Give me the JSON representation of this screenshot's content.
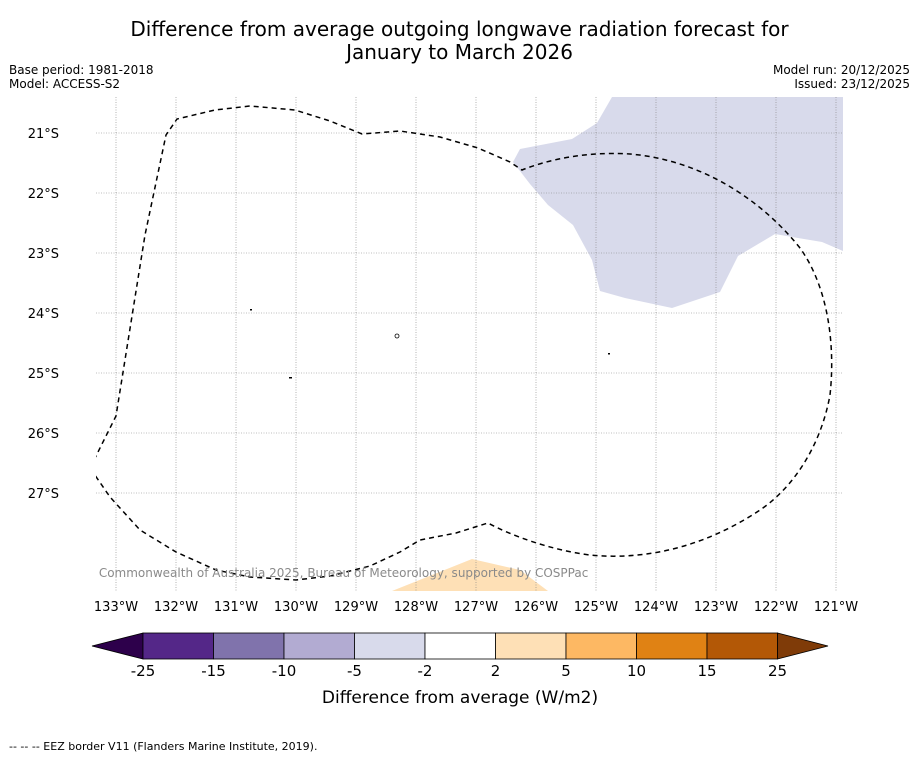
{
  "title_line1": "Difference from average outgoing longwave radiation forecast for",
  "title_line2": "January to March 2026",
  "base_period": "Base period: 1981-2018",
  "model": "Model: ACCESS-S2",
  "model_run": "Model run: 20/12/2025",
  "issued": "Issued: 23/12/2025",
  "latitudes": [
    "21°S",
    "22°S",
    "23°S",
    "24°S",
    "25°S",
    "26°S",
    "27°S"
  ],
  "longitudes": [
    "133°W",
    "132°W",
    "131°W",
    "130°W",
    "129°W",
    "128°W",
    "127°W",
    "126°W",
    "125°W",
    "124°W",
    "123°W",
    "122°W",
    "121°W"
  ],
  "copyright": "© Commonwealth of Australia 2025, Bureau of Meteorology, supported by COSPPac",
  "colorbar": {
    "ticks": [
      "-25",
      "-15",
      "-10",
      "-5",
      "-2",
      "2",
      "5",
      "10",
      "15",
      "25"
    ],
    "colors": [
      "#2d004b",
      "#542788",
      "#8073ac",
      "#b2abd2",
      "#d8daeb",
      "#ffffff",
      "#fee0b6",
      "#fdb863",
      "#e08214",
      "#b35806",
      "#7f3b08"
    ],
    "label": "Difference from average (W/m2)"
  },
  "colors": {
    "negative_region": "#d8daeb",
    "positive_region": "#fee0b6",
    "grid": "#808080"
  },
  "footer": "--  --  -- EEZ border V11 (Flanders Marine Institute, 2019)."
}
